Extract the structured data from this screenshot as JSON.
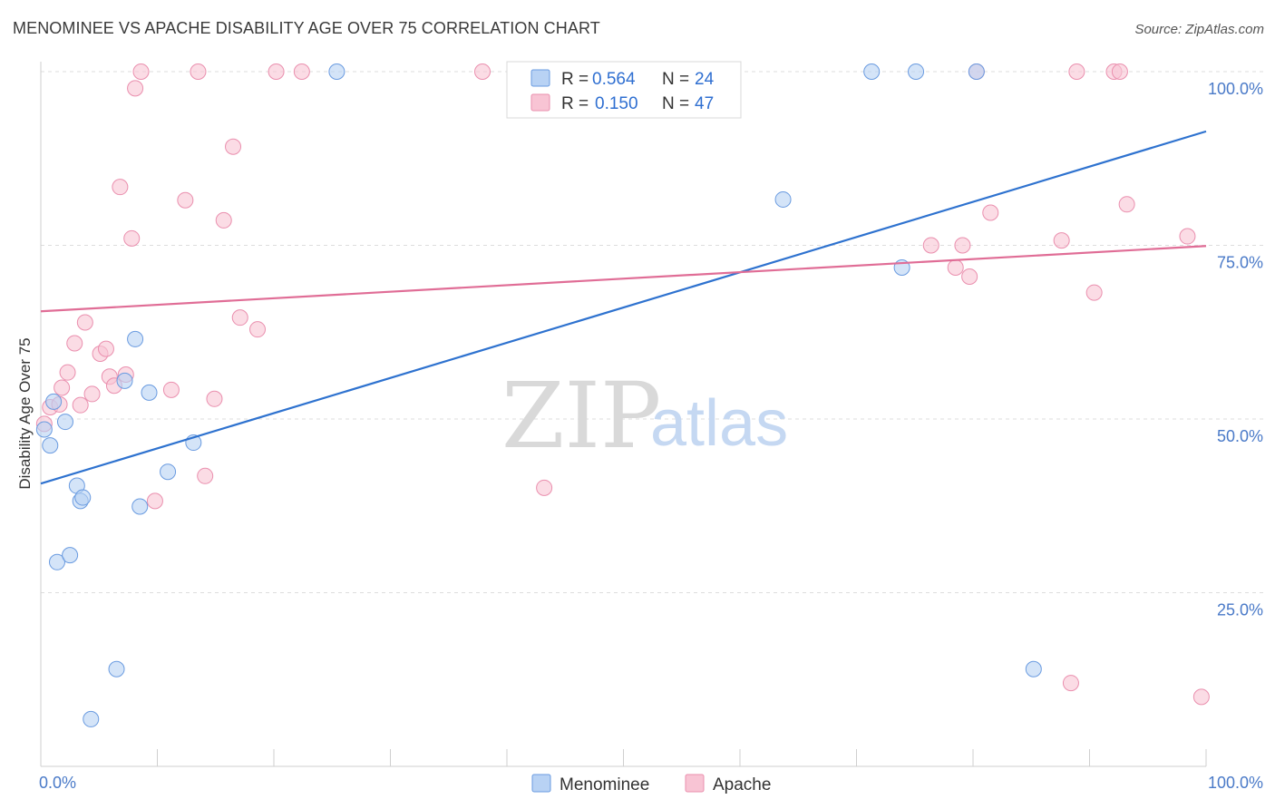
{
  "title": "MENOMINEE VS APACHE DISABILITY AGE OVER 75 CORRELATION CHART",
  "source": "Source: ZipAtlas.com",
  "watermark": {
    "zip": "ZIP",
    "atlas": "atlas"
  },
  "colors": {
    "menominee_fill": "#b8d2f4",
    "menominee_stroke": "#6a9be0",
    "menominee_line": "#2e72cf",
    "apache_fill": "#f8c4d4",
    "apache_stroke": "#ea8fae",
    "apache_line": "#e06d96",
    "grid": "#dddddd",
    "axis_text": "#4a7ac8"
  },
  "legend": {
    "rows": [
      {
        "r_label": "R = ",
        "r_value": "0.564",
        "n_label": "N = ",
        "n_value": "24"
      },
      {
        "r_label": "R = ",
        "r_value": "0.150",
        "n_label": "N = ",
        "n_value": "47"
      }
    ]
  },
  "chart_data": {
    "type": "scatter",
    "title": "MENOMINEE VS APACHE DISABILITY AGE OVER 75 CORRELATION CHART",
    "xlabel": "",
    "ylabel": "Disability Age Over 75",
    "xlim": [
      0,
      100
    ],
    "ylim": [
      0,
      100
    ],
    "x_tick_labels": [
      "0.0%",
      "100.0%"
    ],
    "y_ticks": [
      25,
      50,
      75,
      100
    ],
    "y_tick_labels": [
      "25.0%",
      "50.0%",
      "75.0%",
      "100.0%"
    ],
    "grid": true,
    "legend_position": "bottom",
    "series": [
      {
        "name": "Menominee",
        "color": "#b8d2f4",
        "trend": {
          "x": [
            0,
            100
          ],
          "y": [
            40.7,
            91.4
          ]
        },
        "points": [
          [
            0.3,
            48.5
          ],
          [
            0.8,
            46.2
          ],
          [
            1.1,
            52.5
          ],
          [
            2.1,
            49.6
          ],
          [
            1.4,
            29.4
          ],
          [
            2.5,
            30.4
          ],
          [
            3.1,
            40.4
          ],
          [
            3.4,
            38.2
          ],
          [
            3.6,
            38.7
          ],
          [
            4.3,
            6.8
          ],
          [
            6.5,
            14.0
          ],
          [
            7.2,
            55.5
          ],
          [
            8.1,
            61.5
          ],
          [
            8.5,
            37.4
          ],
          [
            9.3,
            53.8
          ],
          [
            10.9,
            42.4
          ],
          [
            13.1,
            46.6
          ],
          [
            25.4,
            100
          ],
          [
            63.7,
            81.6
          ],
          [
            71.3,
            100
          ],
          [
            73.9,
            71.8
          ],
          [
            75.1,
            100
          ],
          [
            80.3,
            100
          ],
          [
            85.2,
            14.0
          ]
        ]
      },
      {
        "name": "Apache",
        "color": "#f8c4d4",
        "trend": {
          "x": [
            0,
            100
          ],
          "y": [
            65.5,
            74.9
          ]
        },
        "points": [
          [
            0.3,
            49.3
          ],
          [
            0.8,
            51.7
          ],
          [
            1.6,
            52.1
          ],
          [
            1.8,
            54.5
          ],
          [
            2.3,
            56.7
          ],
          [
            2.9,
            60.9
          ],
          [
            3.4,
            52.0
          ],
          [
            3.8,
            63.9
          ],
          [
            4.4,
            53.6
          ],
          [
            5.1,
            59.4
          ],
          [
            5.6,
            60.1
          ],
          [
            5.9,
            56.1
          ],
          [
            6.3,
            54.8
          ],
          [
            6.8,
            83.4
          ],
          [
            7.3,
            56.4
          ],
          [
            7.8,
            76.0
          ],
          [
            8.1,
            97.6
          ],
          [
            8.6,
            100
          ],
          [
            9.8,
            38.2
          ],
          [
            11.2,
            54.2
          ],
          [
            12.4,
            81.5
          ],
          [
            13.5,
            100
          ],
          [
            14.1,
            41.8
          ],
          [
            14.9,
            52.9
          ],
          [
            15.7,
            78.6
          ],
          [
            16.5,
            89.2
          ],
          [
            17.1,
            64.6
          ],
          [
            18.6,
            62.9
          ],
          [
            20.2,
            100
          ],
          [
            22.4,
            100
          ],
          [
            37.9,
            100
          ],
          [
            43.2,
            40.1
          ],
          [
            76.4,
            75.0
          ],
          [
            78.5,
            71.8
          ],
          [
            79.1,
            75.0
          ],
          [
            79.7,
            70.5
          ],
          [
            80.3,
            100
          ],
          [
            81.5,
            79.7
          ],
          [
            87.6,
            75.7
          ],
          [
            88.4,
            12.0
          ],
          [
            88.9,
            100
          ],
          [
            90.4,
            68.2
          ],
          [
            92.1,
            100
          ],
          [
            92.6,
            100
          ],
          [
            93.2,
            80.9
          ],
          [
            98.4,
            76.3
          ],
          [
            99.6,
            10.0
          ]
        ]
      }
    ]
  }
}
